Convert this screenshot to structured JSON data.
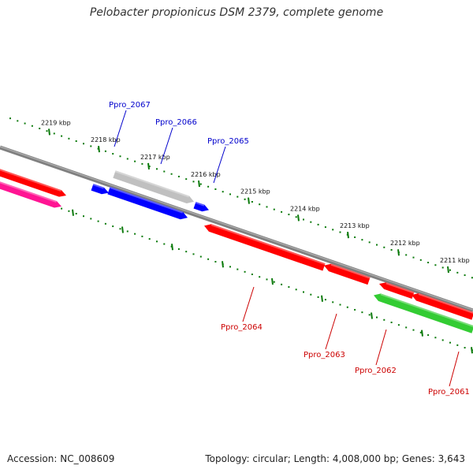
{
  "title": "Pelobacter propionicus DSM 2379, complete genome",
  "footer": {
    "accession": "Accession: NC_008609",
    "topology": "Topology: circular; Length: 4,008,000 bp; Genes: 3,643"
  },
  "colors": {
    "backbone": "#808080",
    "tick": "#0b7a0b",
    "gene_red": "#ff0000",
    "gene_blue": "#0000ff",
    "gene_gray": "#c0c0c0",
    "gene_green": "#33cc33",
    "gene_pink": "#ff1493",
    "label_blue": "#0000cc",
    "label_red": "#cc0000"
  },
  "kbp_labels": [
    {
      "text": "2219 kbp"
    },
    {
      "text": "2218 kbp"
    },
    {
      "text": "2217 kbp"
    },
    {
      "text": "2216 kbp"
    },
    {
      "text": "2215 kbp"
    },
    {
      "text": "2214 kbp"
    },
    {
      "text": "2213 kbp"
    },
    {
      "text": "2212 kbp"
    },
    {
      "text": "2211 kbp"
    }
  ],
  "genes": [
    {
      "name": "Ppro_2067",
      "strand": "+",
      "color": "blue"
    },
    {
      "name": "Ppro_2066",
      "strand": "+",
      "color": "gray"
    },
    {
      "name": "Ppro_2065",
      "strand": "+",
      "color": "blue"
    },
    {
      "name": "Ppro_2064",
      "strand": "-",
      "color": "red"
    },
    {
      "name": "Ppro_2063",
      "strand": "-",
      "color": "red"
    },
    {
      "name": "Ppro_2062",
      "strand": "-",
      "color": "green"
    },
    {
      "name": "Ppro_2061",
      "strand": "-",
      "color": "red"
    }
  ]
}
